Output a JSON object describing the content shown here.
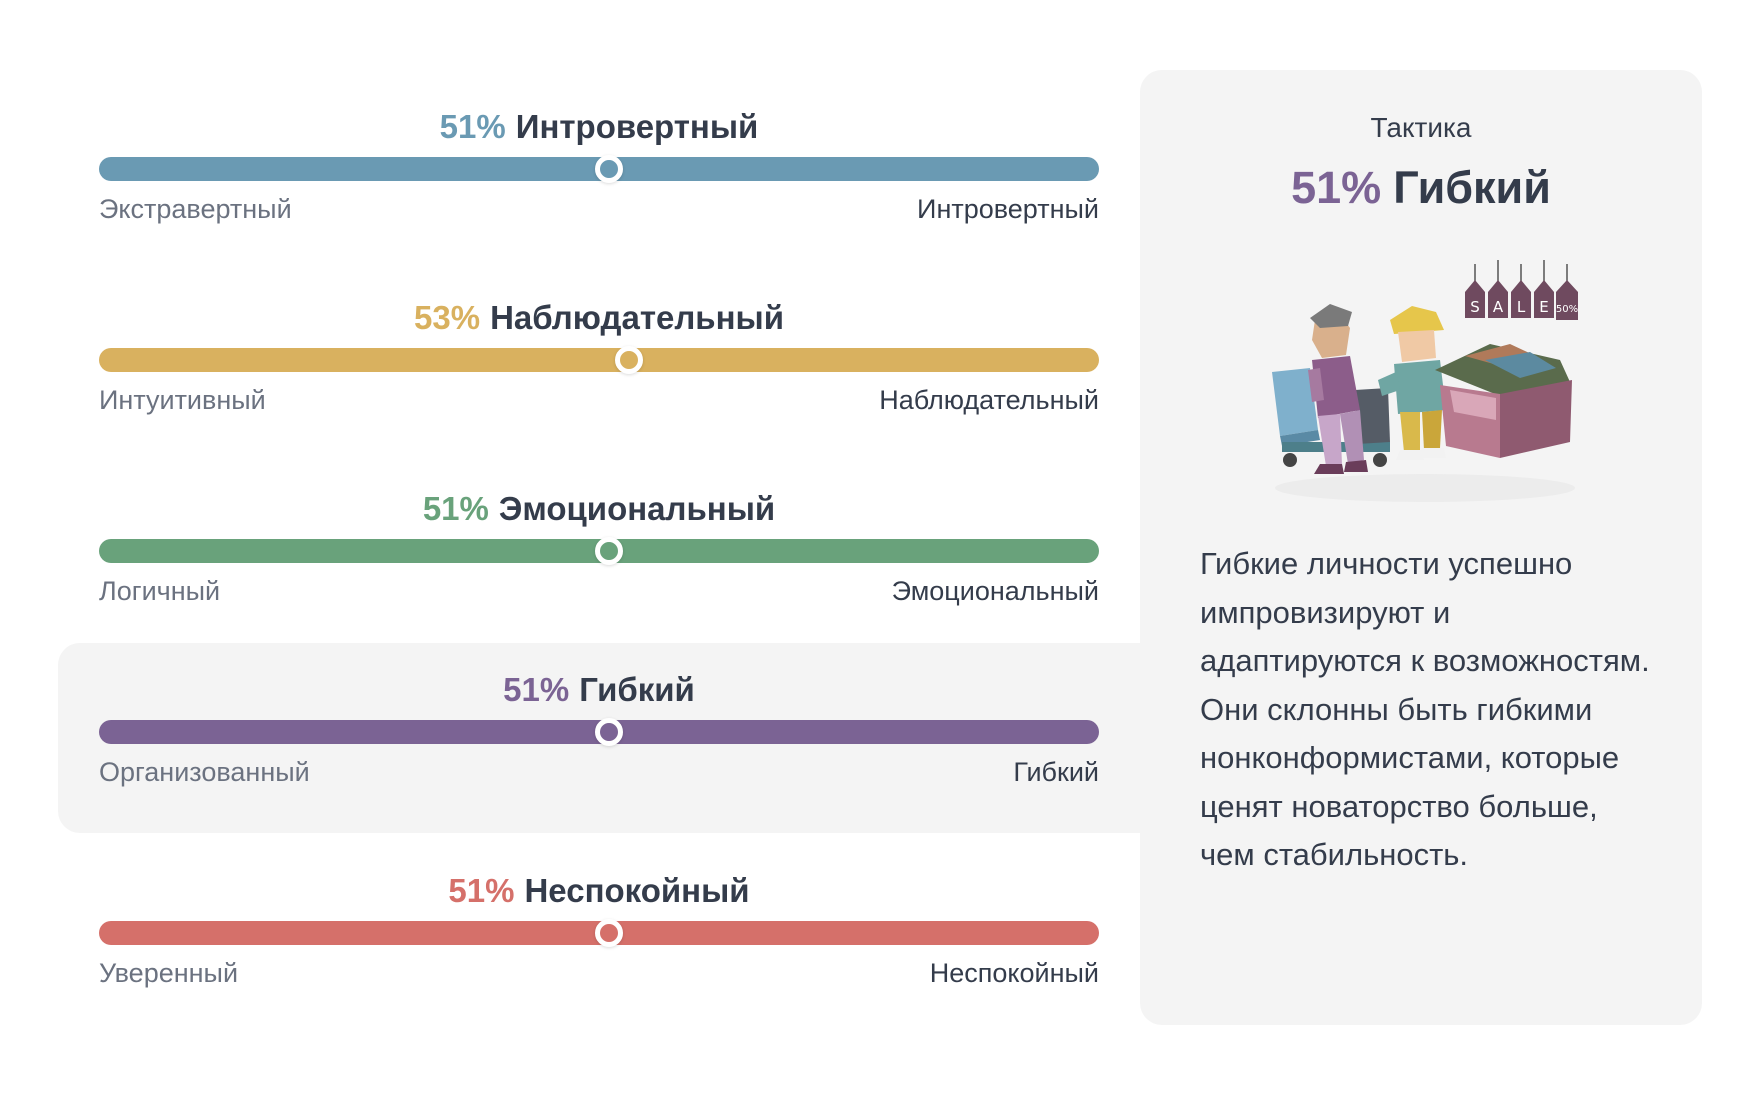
{
  "traits": [
    {
      "percent": "51%",
      "name": "Интровертный",
      "left_label": "Экстравертный",
      "right_label": "Интровертный",
      "color": "#6a9ab3",
      "position_percent": 51,
      "active": false
    },
    {
      "percent": "53%",
      "name": "Наблюдательный",
      "left_label": "Интуитивный",
      "right_label": "Наблюдательный",
      "color": "#d9b15f",
      "position_percent": 53,
      "active": false
    },
    {
      "percent": "51%",
      "name": "Эмоциональный",
      "left_label": "Логичный",
      "right_label": "Эмоциональный",
      "color": "#69a27b",
      "position_percent": 51,
      "active": false
    },
    {
      "percent": "51%",
      "name": "Гибкий",
      "left_label": "Организованный",
      "right_label": "Гибкий",
      "color": "#7b6394",
      "position_percent": 51,
      "active": true
    },
    {
      "percent": "51%",
      "name": "Неспокойный",
      "left_label": "Уверенный",
      "right_label": "Неспокойный",
      "color": "#d5706a",
      "position_percent": 51,
      "active": false
    }
  ],
  "detail": {
    "kicker": "Тактика",
    "percent": "51%",
    "name": "Гибкий",
    "accent_color": "#7b6394",
    "illustration": {
      "name": "sale-shoppers-illustration",
      "tags": [
        "S",
        "A",
        "L",
        "E",
        "50%"
      ]
    },
    "description": "Гибкие личности успешно импровизируют и адаптируются к возможностям. Они склонны быть гибкими нонконформистами, которые ценят новаторство больше, чем стабильность."
  }
}
